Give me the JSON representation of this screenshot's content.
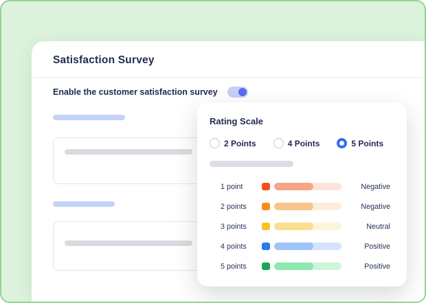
{
  "colors": {
    "canvas_bg": "#dcf2dc",
    "canvas_border": "#92d492",
    "accent_blue": "#2f6df6",
    "toggle_track": "#c7d0f9",
    "toggle_knob": "#5b6cf0",
    "skeleton_blue": "#c5d2f8",
    "skeleton_gray": "#dadbe0"
  },
  "survey": {
    "title": "Satisfaction Survey",
    "toggle_label": "Enable the customer satisfaction survey",
    "toggle_state": "on"
  },
  "rating_scale": {
    "title": "Rating Scale",
    "options": [
      {
        "label": "2 Points",
        "selected": false
      },
      {
        "label": "4 Points",
        "selected": false
      },
      {
        "label": "5 Points",
        "selected": true
      }
    ],
    "rows": [
      {
        "label": "1 point",
        "sentiment": "Negative",
        "bar_color": "#f4511e",
        "bar_mid": "#f7a589",
        "bar_bg": "#fce4da"
      },
      {
        "label": "2 points",
        "sentiment": "Negative",
        "bar_color": "#f68c1e",
        "bar_mid": "#f9c58c",
        "bar_bg": "#fdeeda"
      },
      {
        "label": "3 points",
        "sentiment": "Neutral",
        "bar_color": "#f7c325",
        "bar_mid": "#fadf8f",
        "bar_bg": "#fdf5d8"
      },
      {
        "label": "4 points",
        "sentiment": "Positive",
        "bar_color": "#2979f2",
        "bar_mid": "#9ec4fa",
        "bar_bg": "#d3e4fc"
      },
      {
        "label": "5 points",
        "sentiment": "Positive",
        "bar_color": "#18a65a",
        "bar_mid": "#8ee8b0",
        "bar_bg": "#ccf5d9"
      }
    ]
  }
}
